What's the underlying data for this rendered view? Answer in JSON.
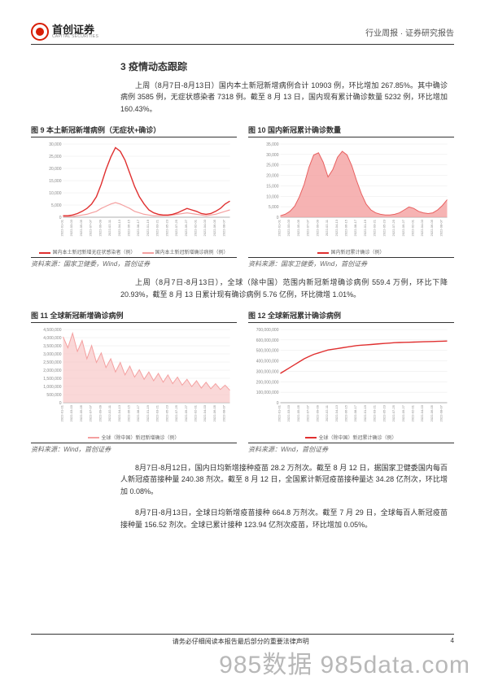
{
  "header": {
    "logo_cn": "首创证券",
    "logo_en": "CAPITAL SECURITIES",
    "right": "行业周报 · 证券研究报告"
  },
  "section_title": "3  疫情动态跟踪",
  "para1": "上周（8月7日-8月13日）国内本土新冠新增病例合计 10903 例，环比增加 267.85%。其中确诊病例 3585 例，无症状感染者 7318 例。截至 8 月 13 日，国内现有累计确诊数量 5232 例，环比增加 160.43%。",
  "para2": "上周（8月7日-8月13日），全球（除中国）范围内新冠新增确诊病例 559.4 万例，环比下降 20.93%，截至 8 月 13 日累计现有确诊病例 5.76 亿例，环比微增 1.01%。",
  "para3": "8月7日-8月12日，国内日均新增接种疫苗 28.2 万剂次。截至 8 月 12 日，据国家卫健委国内每百人新冠疫苗接种量 240.38 剂次。截至 8 月 12 日，全国累计新冠疫苗接种量达 34.28 亿剂次，环比增加 0.08%。",
  "para4": "8月7日-8月13日，全球日均新增疫苗接种 664.8 万剂次。截至 7 月 29 日，全球每百人新冠疫苗接种量 156.52 剂次。全球已累计接种 123.94 亿剂次疫苗，环比增加 0.05%。",
  "charts": {
    "c9": {
      "title": "图 9  本土新冠新增病例（无症状+确诊）",
      "source": "资料来源：国家卫健委，Wind，首创证券",
      "y_ticks": [
        "0",
        "5,000",
        "10,000",
        "15,000",
        "20,000",
        "25,000",
        "30,000"
      ],
      "legend": [
        {
          "color": "#e03030",
          "label": "国内本土新冠新增无症状感染者（例）"
        },
        {
          "color": "#f4a0a0",
          "label": "国内本土新冠新增确诊病例（例）"
        }
      ],
      "series_a": [
        0.02,
        0.02,
        0.03,
        0.05,
        0.08,
        0.12,
        0.18,
        0.28,
        0.45,
        0.65,
        0.82,
        0.95,
        0.9,
        0.78,
        0.6,
        0.42,
        0.28,
        0.18,
        0.1,
        0.06,
        0.04,
        0.03,
        0.03,
        0.04,
        0.06,
        0.09,
        0.12,
        0.1,
        0.08,
        0.05,
        0.04,
        0.05,
        0.08,
        0.12,
        0.18,
        0.22
      ],
      "series_b": [
        0.01,
        0.01,
        0.01,
        0.02,
        0.03,
        0.04,
        0.06,
        0.08,
        0.12,
        0.15,
        0.18,
        0.2,
        0.18,
        0.15,
        0.12,
        0.08,
        0.06,
        0.04,
        0.03,
        0.02,
        0.02,
        0.02,
        0.02,
        0.03,
        0.04,
        0.05,
        0.06,
        0.05,
        0.04,
        0.03,
        0.02,
        0.03,
        0.04,
        0.06,
        0.08,
        0.1
      ],
      "color_a": "#e03030",
      "color_b": "#f4a0a0"
    },
    "c10": {
      "title": "图 10  国内新冠累计确诊数量",
      "source": "资料来源：国家卫健委，Wind，首创证券",
      "y_ticks": [
        "0",
        "5,000",
        "10,000",
        "15,000",
        "20,000",
        "25,000",
        "30,000",
        "35,000"
      ],
      "legend": [
        {
          "color": "#e03030",
          "label": "国内新冠累计确诊（例）"
        }
      ],
      "series": [
        0.02,
        0.04,
        0.08,
        0.15,
        0.28,
        0.45,
        0.68,
        0.85,
        0.88,
        0.75,
        0.55,
        0.65,
        0.82,
        0.9,
        0.85,
        0.7,
        0.5,
        0.32,
        0.18,
        0.1,
        0.06,
        0.04,
        0.03,
        0.03,
        0.04,
        0.06,
        0.1,
        0.14,
        0.12,
        0.08,
        0.06,
        0.05,
        0.06,
        0.1,
        0.16,
        0.24
      ],
      "color": "#e86060",
      "fill": "#f4a0a0"
    },
    "c11": {
      "title": "图 11  全球新冠新增确诊病例",
      "source": "资料来源：Wind，首创证券",
      "y_ticks": [
        "0",
        "500,000",
        "1,000,000",
        "1,500,000",
        "2,000,000",
        "2,500,000",
        "3,000,000",
        "3,500,000",
        "4,000,000",
        "4,500,000"
      ],
      "legend": [
        {
          "color": "#f4a0a0",
          "label": "全球（除中国）新冠新增确诊（例）"
        }
      ],
      "series": [
        0.9,
        0.75,
        0.95,
        0.7,
        0.85,
        0.6,
        0.78,
        0.55,
        0.68,
        0.48,
        0.6,
        0.42,
        0.55,
        0.38,
        0.5,
        0.35,
        0.45,
        0.32,
        0.42,
        0.3,
        0.4,
        0.28,
        0.38,
        0.26,
        0.35,
        0.24,
        0.32,
        0.22,
        0.3,
        0.2,
        0.28,
        0.19,
        0.26,
        0.18,
        0.24,
        0.17
      ],
      "color": "#f4a0a0",
      "fill": "#f8c8c8"
    },
    "c12": {
      "title": "图 12  全球新冠累计确诊病例",
      "source": "资料来源：Wind，首创证券",
      "y_ticks": [
        "0",
        "100,000,000",
        "200,000,000",
        "300,000,000",
        "400,000,000",
        "500,000,000",
        "600,000,000",
        "700,000,000"
      ],
      "legend": [
        {
          "color": "#e03030",
          "label": "全球（除中国）新冠累计确诊（例）"
        }
      ],
      "series": [
        0.4,
        0.44,
        0.48,
        0.52,
        0.56,
        0.6,
        0.63,
        0.66,
        0.68,
        0.7,
        0.72,
        0.73,
        0.74,
        0.75,
        0.76,
        0.77,
        0.78,
        0.785,
        0.79,
        0.795,
        0.8,
        0.805,
        0.81,
        0.815,
        0.82,
        0.822,
        0.824,
        0.826,
        0.828,
        0.83,
        0.832,
        0.834,
        0.836,
        0.838,
        0.84,
        0.842
      ],
      "color": "#e03030"
    }
  },
  "footer": {
    "center": "请务必仔细阅读本报告最后部分的重要法律声明",
    "page": "4"
  },
  "watermark": "985数据 985data.com",
  "styling": {
    "accent": "#e03030",
    "grid": "#e8e8e8",
    "axis_text": "#888888"
  }
}
